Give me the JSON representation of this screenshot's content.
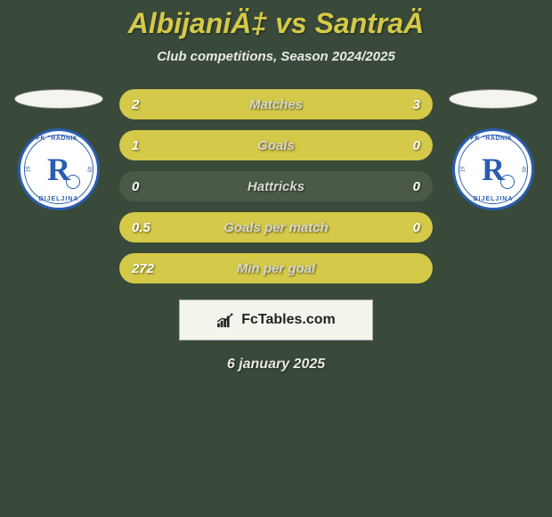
{
  "header": {
    "title": "AlbijaniÄ‡ vs SantraÄ",
    "subtitle": "Club competitions, Season 2024/2025"
  },
  "badge": {
    "top_text": "FK \"RADNIK\"",
    "bottom_text": "BIJELJINA",
    "year_left": "19",
    "year_right": "45",
    "letter": "R",
    "border_color": "#2a5db0",
    "bg_color": "#ffffff"
  },
  "bars": {
    "background_color": "#4a5a47",
    "fill_color": "#d4c948",
    "rows": [
      {
        "label": "Matches",
        "left_val": "2",
        "right_val": "3",
        "left_frac": 0.4,
        "right_frac": 0.6
      },
      {
        "label": "Goals",
        "left_val": "1",
        "right_val": "0",
        "left_frac": 1.0,
        "right_frac": 0.0
      },
      {
        "label": "Hattricks",
        "left_val": "0",
        "right_val": "0",
        "left_frac": 0.0,
        "right_frac": 0.0
      },
      {
        "label": "Goals per match",
        "left_val": "0.5",
        "right_val": "0",
        "left_frac": 1.0,
        "right_frac": 0.0
      },
      {
        "label": "Min per goal",
        "left_val": "272",
        "right_val": "",
        "left_frac": 1.0,
        "right_frac": 0.0
      }
    ]
  },
  "footer": {
    "logo_text": "FcTables.com",
    "date": "6 january 2025"
  },
  "colors": {
    "page_bg": "#3a4a3a",
    "accent": "#d4c948",
    "text_light": "#e8e8e8"
  }
}
